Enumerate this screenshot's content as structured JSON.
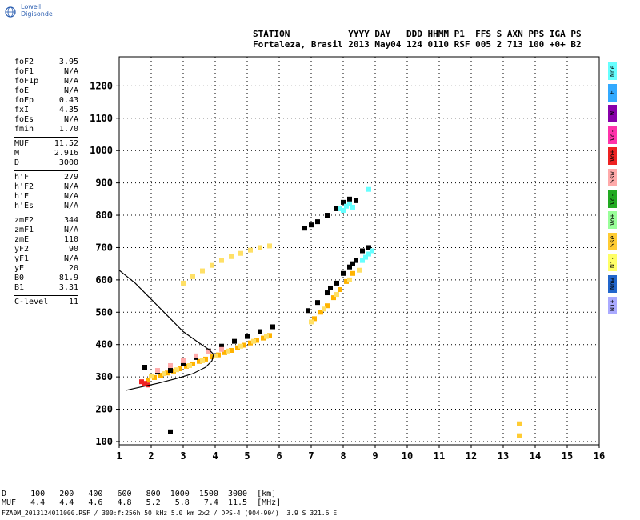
{
  "brand": {
    "name": "Lowell Digisonde",
    "logo_icon": "globe-icon"
  },
  "header": {
    "row1": "STATION           YYYY DAY   DDD HHMM P1  FFS S AXN PPS IGA PS",
    "row2": "Fortaleza, Brasil 2013 May04 124 0110 RSF 005 2 713 100 +0+ B2"
  },
  "params": {
    "group1": [
      {
        "key": "foF2",
        "val": "3.95"
      },
      {
        "key": "foF1",
        "val": "N/A"
      },
      {
        "key": "foF1p",
        "val": "N/A"
      },
      {
        "key": "foE",
        "val": "N/A"
      },
      {
        "key": "foEp",
        "val": "0.43"
      },
      {
        "key": "fxI",
        "val": "4.35"
      },
      {
        "key": "foEs",
        "val": "N/A"
      },
      {
        "key": "fmin",
        "val": "1.70"
      }
    ],
    "group2": [
      {
        "key": "MUF",
        "val": "11.52"
      },
      {
        "key": "M",
        "val": "2.916"
      },
      {
        "key": "D",
        "val": "3000"
      }
    ],
    "group3": [
      {
        "key": "h'F",
        "val": "279"
      },
      {
        "key": "h'F2",
        "val": "N/A"
      },
      {
        "key": "h'E",
        "val": "N/A"
      },
      {
        "key": "h'Es",
        "val": "N/A"
      }
    ],
    "group4": [
      {
        "key": "zmF2",
        "val": "344"
      },
      {
        "key": "zmF1",
        "val": "N/A"
      },
      {
        "key": "zmE",
        "val": "110"
      },
      {
        "key": "yF2",
        "val": "90"
      },
      {
        "key": "yF1",
        "val": "N/A"
      },
      {
        "key": "yE",
        "val": "20"
      },
      {
        "key": "B0",
        "val": "81.9"
      },
      {
        "key": "B1",
        "val": "3.31"
      }
    ],
    "group5": [
      {
        "key": "C-level",
        "val": "11"
      }
    ]
  },
  "polarizations": [
    {
      "label": "Nne",
      "color": "#66ffff"
    },
    {
      "label": "E",
      "color": "#33aaff"
    },
    {
      "label": "W",
      "color": "#8800aa"
    },
    {
      "label": "Vo-",
      "color": "#ff33aa"
    },
    {
      "label": "Vo+",
      "color": "#ee2222"
    },
    {
      "label": "Ssw",
      "color": "#ffaaaa"
    },
    {
      "label": "Vo-",
      "color": "#22aa22"
    },
    {
      "label": "Vo+",
      "color": "#99ff99"
    },
    {
      "label": "Sse",
      "color": "#ffcc33"
    },
    {
      "label": "Ni-",
      "color": "#ffff66"
    },
    {
      "label": "Nnw",
      "color": "#2266cc"
    },
    {
      "label": "Ni+",
      "color": "#aaaaff"
    }
  ],
  "footer": {
    "d_row": "D     100   200   400   600   800  1000  1500  3000  [km]",
    "muf_row": "MUF   4.4   4.4   4.6   4.8   5.2   5.8   7.4  11.5  [MHz]",
    "file": "FZA0M_2013124011000.RSF / 300:f:256h 50 kHz 5.0 km 2x2 / DPS-4 (904-904)  3.9 S 321.6 E"
  },
  "chart_data": {
    "type": "scatter",
    "title": "",
    "xlabel": "",
    "ylabel": "",
    "xlim": [
      1,
      16
    ],
    "ylim": [
      90,
      1290
    ],
    "x_ticks": [
      1,
      2,
      3,
      4,
      5,
      6,
      7,
      8,
      9,
      10,
      11,
      12,
      13,
      14,
      15,
      16
    ],
    "y_ticks": [
      100,
      200,
      300,
      400,
      500,
      600,
      700,
      800,
      900,
      1000,
      1100,
      1200
    ],
    "grid": true,
    "series": [
      {
        "color": "#ffb300",
        "points": [
          [
            1.9,
            290
          ],
          [
            2.1,
            298
          ],
          [
            2.3,
            305
          ],
          [
            2.5,
            312
          ],
          [
            2.7,
            318
          ],
          [
            2.9,
            325
          ],
          [
            3.1,
            333
          ],
          [
            3.3,
            340
          ],
          [
            3.5,
            348
          ],
          [
            3.7,
            355
          ],
          [
            3.9,
            362
          ],
          [
            4.1,
            368
          ],
          [
            4.3,
            375
          ],
          [
            4.5,
            382
          ],
          [
            4.7,
            390
          ],
          [
            4.9,
            398
          ],
          [
            5.1,
            405
          ],
          [
            5.3,
            413
          ],
          [
            5.5,
            420
          ],
          [
            5.7,
            428
          ],
          [
            7.1,
            480
          ],
          [
            7.3,
            500
          ],
          [
            7.5,
            520
          ],
          [
            7.7,
            545
          ],
          [
            7.9,
            570
          ],
          [
            8.1,
            595
          ],
          [
            8.3,
            620
          ]
        ]
      },
      {
        "color": "#ffe066",
        "points": [
          [
            2.0,
            302
          ],
          [
            2.4,
            310
          ],
          [
            2.8,
            322
          ],
          [
            3.2,
            335
          ],
          [
            3.6,
            350
          ],
          [
            4.0,
            365
          ],
          [
            4.4,
            380
          ],
          [
            4.8,
            395
          ],
          [
            5.2,
            410
          ],
          [
            5.6,
            425
          ],
          [
            3.0,
            590
          ],
          [
            3.3,
            610
          ],
          [
            3.6,
            628
          ],
          [
            3.9,
            645
          ],
          [
            4.2,
            660
          ],
          [
            4.5,
            672
          ],
          [
            4.8,
            682
          ],
          [
            5.1,
            692
          ],
          [
            5.4,
            700
          ],
          [
            5.7,
            705
          ],
          [
            7.0,
            470
          ],
          [
            7.4,
            510
          ],
          [
            7.8,
            555
          ],
          [
            8.2,
            600
          ],
          [
            8.5,
            630
          ]
        ]
      },
      {
        "color": "#000000",
        "points": [
          [
            1.8,
            330
          ],
          [
            2.2,
            315
          ],
          [
            2.6,
            320
          ],
          [
            3.0,
            340
          ],
          [
            3.4,
            360
          ],
          [
            3.8,
            380
          ],
          [
            4.2,
            395
          ],
          [
            4.6,
            410
          ],
          [
            5.0,
            425
          ],
          [
            5.4,
            440
          ],
          [
            5.8,
            455
          ],
          [
            6.8,
            760
          ],
          [
            7.0,
            770
          ],
          [
            7.2,
            780
          ],
          [
            7.5,
            800
          ],
          [
            7.8,
            820
          ],
          [
            8.0,
            840
          ],
          [
            8.2,
            850
          ],
          [
            8.4,
            845
          ],
          [
            7.2,
            530
          ],
          [
            7.5,
            560
          ],
          [
            7.8,
            590
          ],
          [
            8.0,
            620
          ],
          [
            8.2,
            640
          ],
          [
            8.4,
            660
          ],
          [
            8.6,
            690
          ],
          [
            8.8,
            700
          ],
          [
            6.9,
            505
          ],
          [
            7.6,
            575
          ],
          [
            8.3,
            650
          ],
          [
            2.6,
            130
          ]
        ]
      },
      {
        "color": "#66ffff",
        "points": [
          [
            7.9,
            820
          ],
          [
            8.0,
            815
          ],
          [
            8.1,
            828
          ],
          [
            8.2,
            835
          ],
          [
            8.3,
            825
          ],
          [
            8.8,
            880
          ],
          [
            8.7,
            670
          ],
          [
            8.8,
            680
          ],
          [
            8.9,
            690
          ],
          [
            8.6,
            660
          ]
        ]
      },
      {
        "color": "#ffaaaa",
        "points": [
          [
            2.2,
            320
          ],
          [
            2.6,
            335
          ],
          [
            3.0,
            350
          ],
          [
            3.4,
            365
          ],
          [
            3.8,
            378
          ],
          [
            4.2,
            385
          ]
        ]
      },
      {
        "color": "#ee2222",
        "points": [
          [
            1.7,
            285
          ],
          [
            1.8,
            280
          ],
          [
            1.9,
            275
          ]
        ]
      },
      {
        "color": "#ffcc33",
        "points": [
          [
            13.5,
            118
          ],
          [
            13.5,
            155
          ]
        ]
      }
    ],
    "profile_curve": [
      [
        1.0,
        630
      ],
      [
        1.5,
        590
      ],
      [
        2.0,
        540
      ],
      [
        2.5,
        490
      ],
      [
        3.0,
        440
      ],
      [
        3.5,
        405
      ],
      [
        3.8,
        385
      ],
      [
        3.95,
        370
      ],
      [
        3.9,
        350
      ],
      [
        3.7,
        330
      ],
      [
        3.3,
        310
      ],
      [
        2.8,
        295
      ],
      [
        2.2,
        280
      ],
      [
        1.5,
        265
      ],
      [
        1.2,
        258
      ]
    ]
  }
}
